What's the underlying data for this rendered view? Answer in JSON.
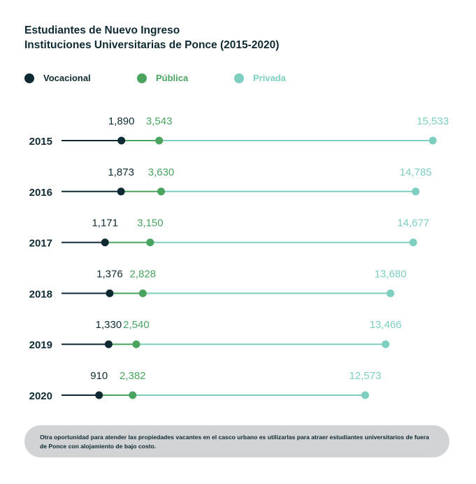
{
  "title": {
    "line1": "Estudiantes de Nuevo Ingreso",
    "line2": "Instituciones Universitarias de Ponce (2015-2020)"
  },
  "legend": [
    {
      "label": "Vocacional",
      "color": "#0f2a33"
    },
    {
      "label": "Pública",
      "color": "#4aa460"
    },
    {
      "label": "Privada",
      "color": "#7ecfc0"
    }
  ],
  "note": "Otra oportunidad para atender las propiedades vacantes en el casco urbano es utilizarlas para atraer estudiantes universitarios de fuera de Ponce con alojamiento de bajo costo.",
  "chart_data": {
    "type": "dot-range",
    "categories": [
      "2015",
      "2016",
      "2017",
      "2018",
      "2019",
      "2020"
    ],
    "series": [
      {
        "name": "Vocacional",
        "color": "#0f2a33",
        "values": [
          1890,
          1873,
          1171,
          1376,
          1330,
          910
        ],
        "labels": [
          "1,890",
          "1,873",
          "1,171",
          "1,376",
          "1,330",
          "910"
        ]
      },
      {
        "name": "Pública",
        "color": "#4aa460",
        "values": [
          3543,
          3630,
          3150,
          2828,
          2540,
          2382
        ],
        "labels": [
          "3,543",
          "3,630",
          "3,150",
          "2,828",
          "2,540",
          "2,382"
        ]
      },
      {
        "name": "Privada",
        "color": "#7ecfc0",
        "values": [
          15533,
          14785,
          14677,
          13680,
          13466,
          12573
        ],
        "labels": [
          "15,533",
          "14,785",
          "14,677",
          "13,680",
          "13,466",
          "12,573"
        ]
      }
    ]
  }
}
